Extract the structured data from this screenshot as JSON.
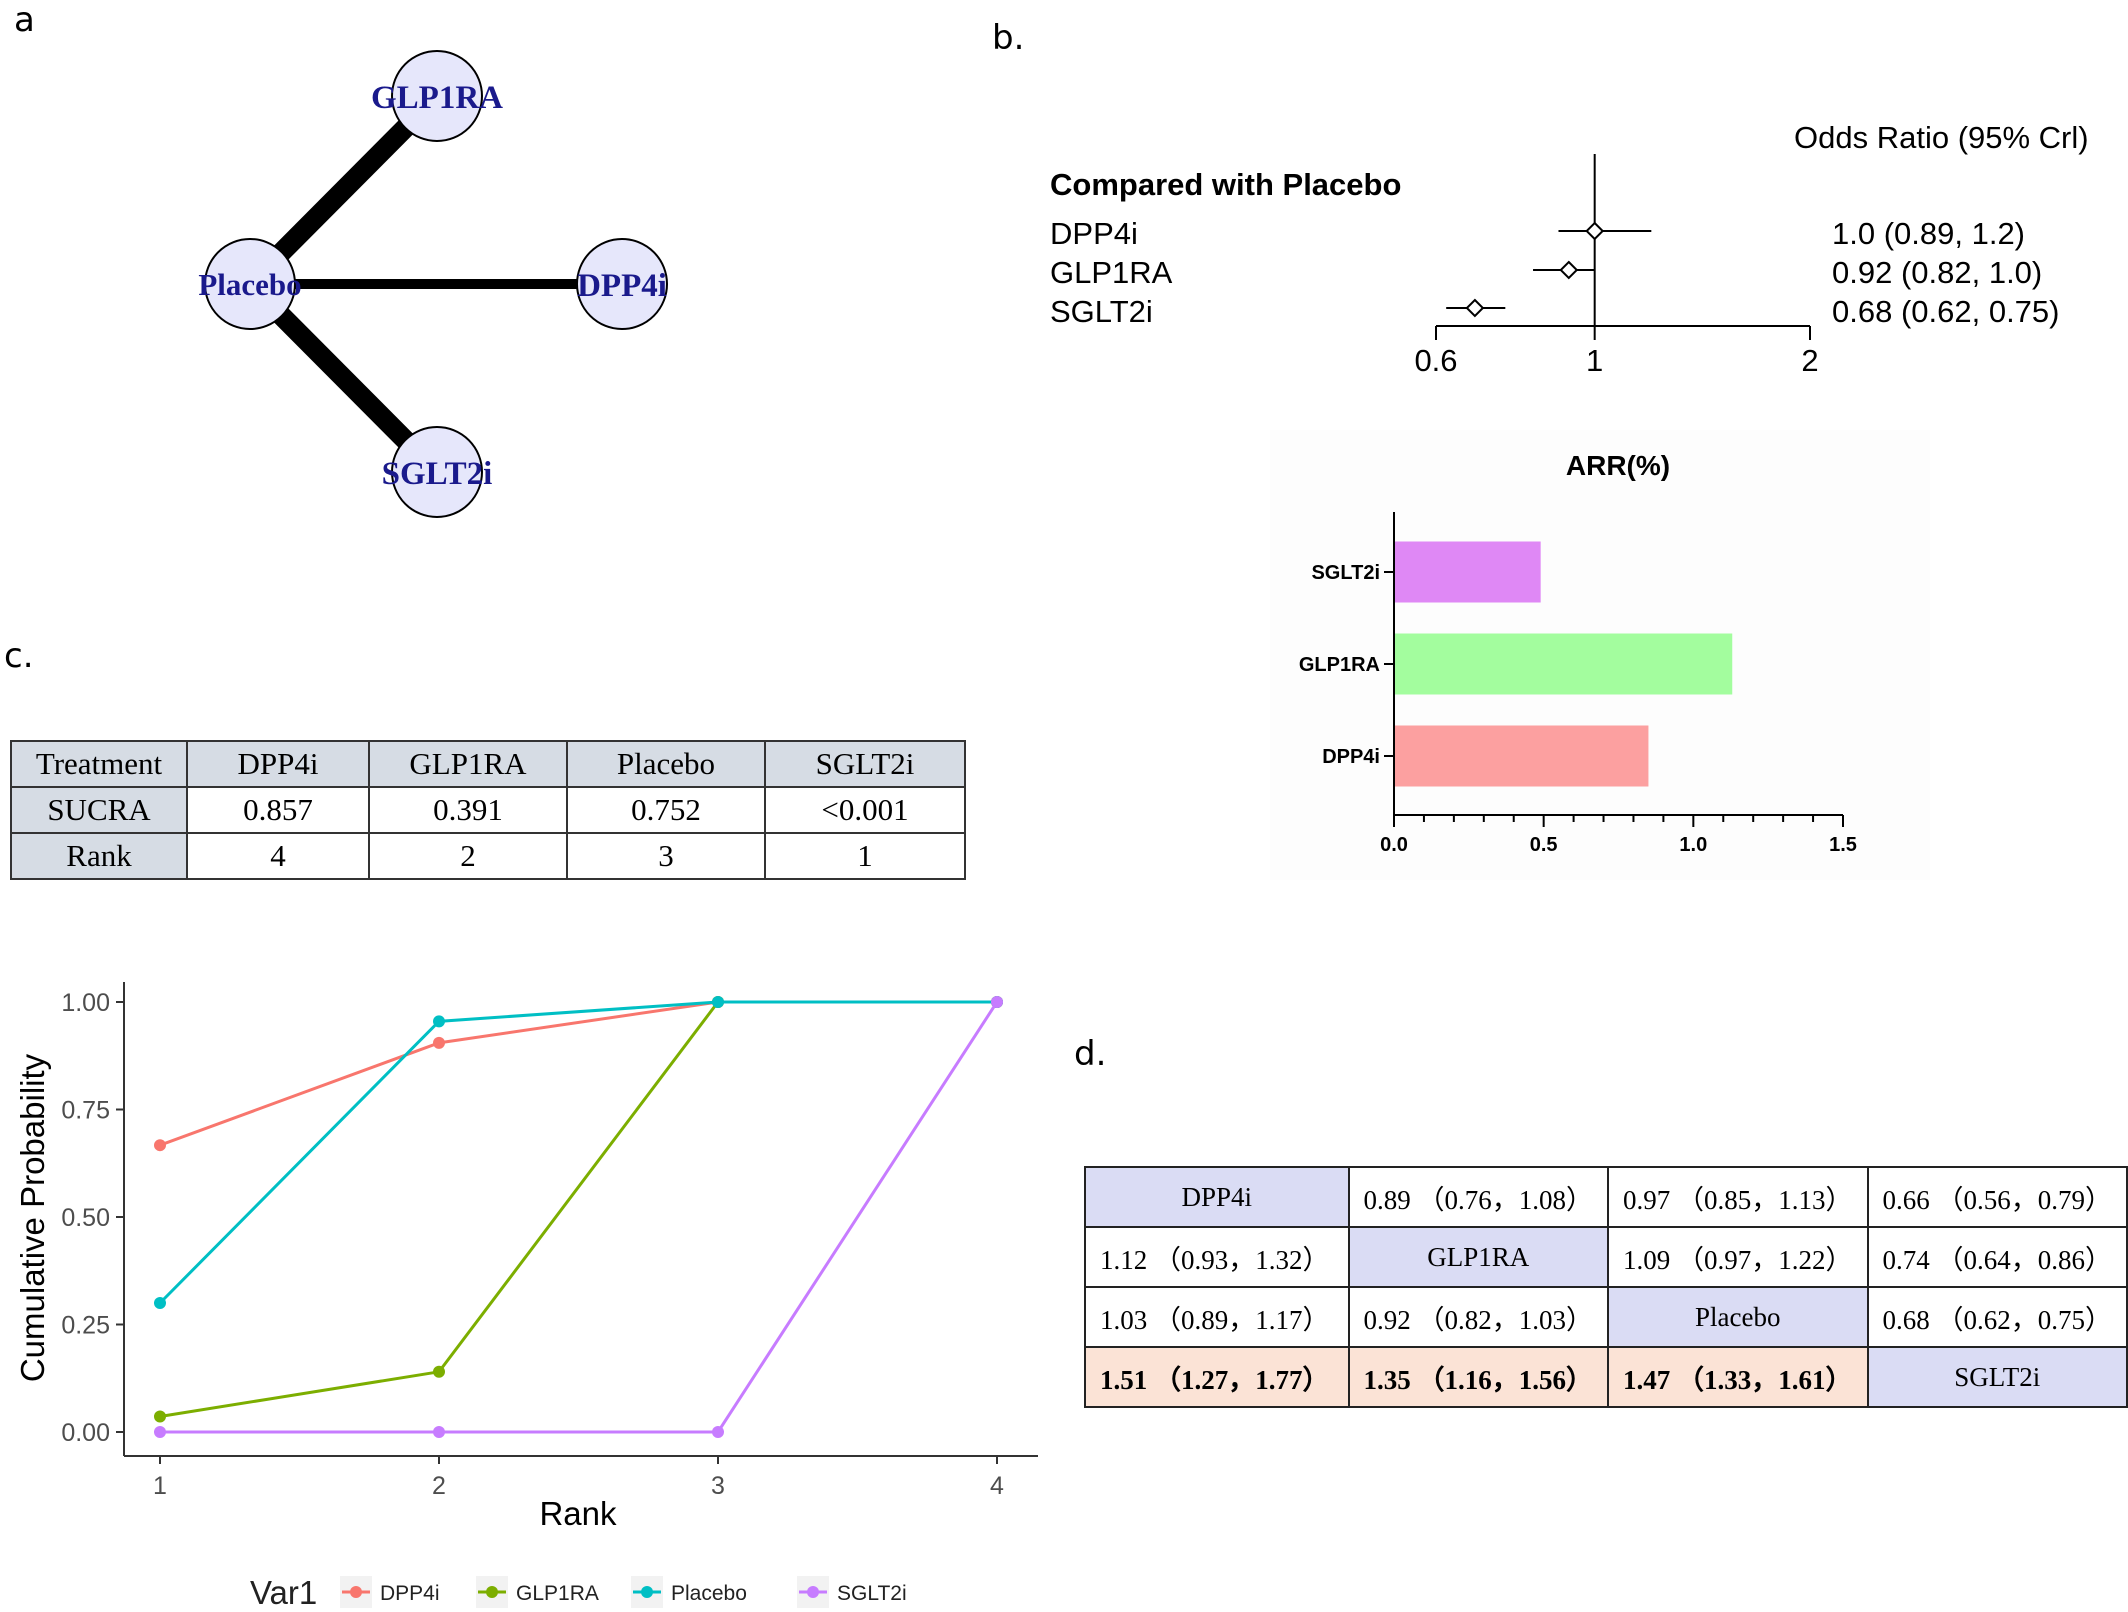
{
  "panels": {
    "a": "a",
    "b": "b.",
    "c": "c.",
    "d": "d."
  },
  "network": {
    "nodes": [
      "GLP1RA",
      "Placebo",
      "DPP4i",
      "SGLT2i"
    ],
    "edges": [
      {
        "from": "Placebo",
        "to": "GLP1RA",
        "weight": "thick"
      },
      {
        "from": "Placebo",
        "to": "DPP4i",
        "weight": "medium"
      },
      {
        "from": "Placebo",
        "to": "SGLT2i",
        "weight": "thick"
      }
    ]
  },
  "forest": {
    "header": "Odds Ratio (95% Crl)",
    "group_title": "Compared with Placebo",
    "rows": [
      {
        "label": "DPP4i",
        "text": "1.0 (0.89, 1.2)"
      },
      {
        "label": "GLP1RA",
        "text": "0.92 (0.82, 1.0)"
      },
      {
        "label": "SGLT2i",
        "text": "0.68 (0.62, 0.75)"
      }
    ],
    "ticks": [
      "0.6",
      "1",
      "2"
    ]
  },
  "sucra_table": {
    "header": [
      "Treatment",
      "DPP4i",
      "GLP1RA",
      "Placebo",
      "SGLT2i"
    ],
    "rows": [
      [
        "SUCRA",
        "0.857",
        "0.391",
        "0.752",
        "<0.001"
      ],
      [
        "Rank",
        "4",
        "2",
        "3",
        "1"
      ]
    ]
  },
  "league": {
    "rows": [
      [
        "DPP4i",
        "0.89 （0.76，1.08）",
        "0.97 （0.85，1.13）",
        "0.66 （0.56，0.79）"
      ],
      [
        "1.12 （0.93，1.32）",
        "GLP1RA",
        "1.09 （0.97，1.22）",
        "0.74 （0.64，0.86）"
      ],
      [
        "1.03 （0.89，1.17）",
        "0.92 （0.82，1.03）",
        "Placebo",
        "0.68 （0.62，0.75）"
      ],
      [
        "1.51 （1.27，1.77）",
        "1.35 （1.16，1.56）",
        "1.47 （1.33，1.61）",
        "SGLT2i"
      ]
    ]
  },
  "chart_data": [
    {
      "type": "scatter",
      "subtype": "forest",
      "xscale": "log",
      "xlim": [
        0.6,
        2
      ],
      "ticks": [
        0.6,
        1,
        2
      ],
      "reference_line": 1,
      "categories": [
        "DPP4i",
        "GLP1RA",
        "SGLT2i"
      ],
      "estimate": [
        1.0,
        0.92,
        0.68
      ],
      "lower": [
        0.89,
        0.82,
        0.62
      ],
      "upper": [
        1.2,
        1.0,
        0.75
      ]
    },
    {
      "type": "bar",
      "orientation": "horizontal",
      "title": "ARR(%)",
      "categories": [
        "SGLT2i",
        "GLP1RA",
        "DPP4i"
      ],
      "values": [
        0.49,
        1.13,
        0.85
      ],
      "colors": [
        "#df88f5",
        "#a3fd9e",
        "#fca0a0"
      ],
      "xlim": [
        0,
        1.5
      ],
      "xticks": [
        "0.0",
        "0.5",
        "1.0",
        "1.5"
      ]
    },
    {
      "type": "line",
      "xlabel": "Rank",
      "ylabel": "Cumulative Probability",
      "x": [
        1,
        2,
        3,
        4
      ],
      "ylim": [
        0,
        1
      ],
      "yticks": [
        "0.00",
        "0.25",
        "0.50",
        "0.75",
        "1.00"
      ],
      "xticks": [
        "1",
        "2",
        "3",
        "4"
      ],
      "legend_title": "Var1",
      "legend_position": "bottom",
      "series": [
        {
          "name": "DPP4i",
          "color": "#f8766d",
          "values": [
            0.667,
            0.905,
            1.0,
            1.0
          ]
        },
        {
          "name": "GLP1RA",
          "color": "#7cae00",
          "values": [
            0.036,
            0.14,
            1.0,
            1.0
          ]
        },
        {
          "name": "Placebo",
          "color": "#00bfc4",
          "values": [
            0.3,
            0.955,
            1.0,
            1.0
          ]
        },
        {
          "name": "SGLT2i",
          "color": "#c77cff",
          "values": [
            0.0,
            0.0,
            0.0,
            1.0
          ]
        }
      ]
    }
  ]
}
